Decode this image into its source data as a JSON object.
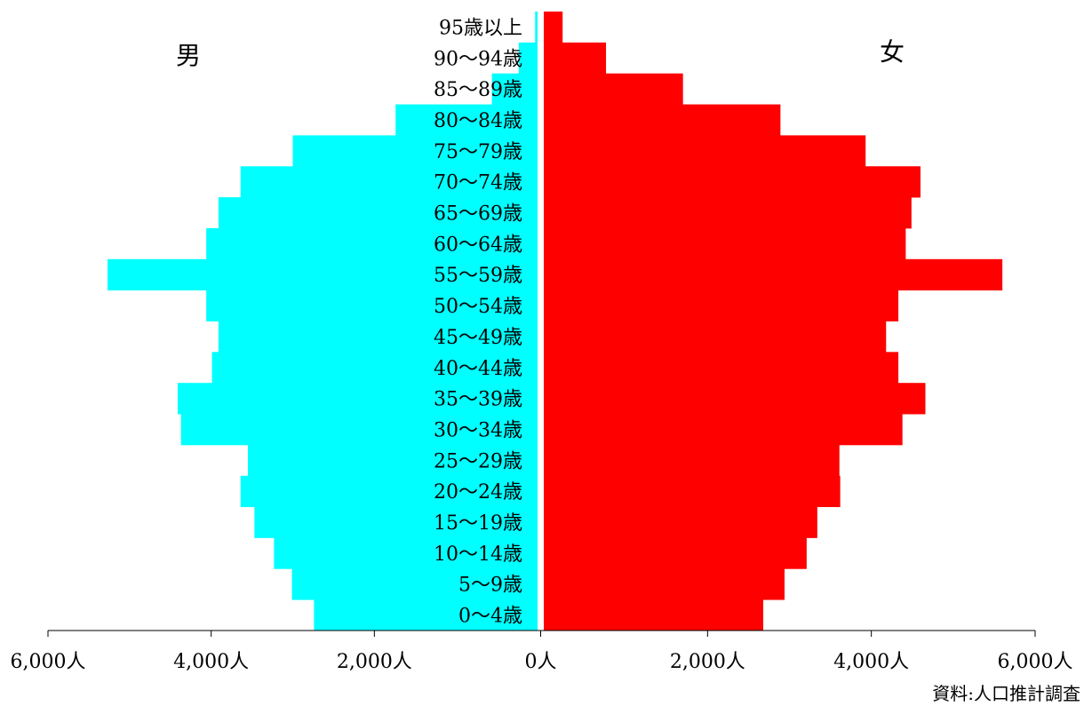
{
  "chart_data": {
    "type": "bar",
    "orientation": "horizontal",
    "layout": "population-pyramid",
    "categories": [
      "95歳以上",
      "90～94歳",
      "85～89歳",
      "80～84歳",
      "75～79歳",
      "70～74歳",
      "65～69歳",
      "60～64歳",
      "55～59歳",
      "50～54歳",
      "45～49歳",
      "40～44歳",
      "35～39歳",
      "30～34歳",
      "25～29歳",
      "20～24歳",
      "15～19歳",
      "10～14歳",
      "5～9歳",
      "0～4歳"
    ],
    "series": [
      {
        "name": "男",
        "side": "left",
        "color": "#00FFFF",
        "values": [
          30,
          230,
          560,
          1740,
          3000,
          3640,
          3910,
          4060,
          5270,
          4060,
          3910,
          3990,
          4410,
          4370,
          3550,
          3640,
          3470,
          3230,
          3010,
          2740
        ]
      },
      {
        "name": "女",
        "side": "right",
        "color": "#FF0000",
        "values": [
          230,
          760,
          1700,
          2890,
          3930,
          4600,
          4490,
          4420,
          5600,
          4330,
          4180,
          4330,
          4660,
          4380,
          3610,
          3620,
          3340,
          3210,
          2940,
          2680
        ]
      }
    ],
    "xlim": [
      -6000,
      6000
    ],
    "xticks": [
      {
        "value": -6000,
        "label": "6,000人"
      },
      {
        "value": -4000,
        "label": "4,000人"
      },
      {
        "value": -2000,
        "label": "2,000人"
      },
      {
        "value": 0,
        "label": "0人"
      },
      {
        "value": 2000,
        "label": "2,000人"
      },
      {
        "value": 4000,
        "label": "4,000人"
      },
      {
        "value": 6000,
        "label": "6,000人"
      }
    ],
    "grid": false,
    "source": "資料:人口推計調査"
  }
}
